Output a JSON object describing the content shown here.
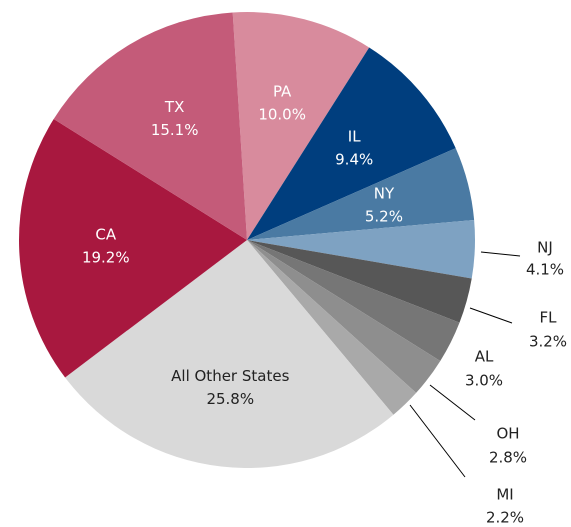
{
  "chart_data": {
    "type": "pie",
    "labels": [
      "PA",
      "IL",
      "NY",
      "NJ",
      "FL",
      "AL",
      "OH",
      "MI",
      "All Other States",
      "CA",
      "TX"
    ],
    "values": [
      10.0,
      9.4,
      5.2,
      4.1,
      3.2,
      3.0,
      2.8,
      2.2,
      25.8,
      19.2,
      15.1
    ],
    "value_labels": [
      "10.0%",
      "9.4%",
      "5.2%",
      "4.1%",
      "3.2%",
      "3.0%",
      "2.8%",
      "2.2%",
      "25.8%",
      "19.2%",
      "15.1%"
    ],
    "colors": [
      "#d88b9d",
      "#003e7e",
      "#4a7aa3",
      "#7ea2c2",
      "#575757",
      "#767676",
      "#8e8e8e",
      "#a9a9a9",
      "#d9d9d9",
      "#a8183f",
      "#c45b79"
    ]
  }
}
